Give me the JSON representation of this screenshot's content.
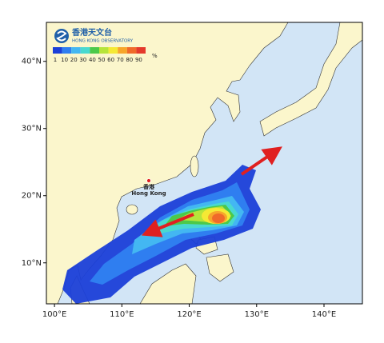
{
  "logo": {
    "name_zh": "香港天文台",
    "name_en": "HONG KONG OBSERVATORY"
  },
  "colorbar": {
    "levels": [
      1,
      10,
      20,
      30,
      40,
      50,
      60,
      70,
      80,
      90
    ],
    "unit": "%",
    "colors": [
      "#1b3fd8",
      "#2f7ef0",
      "#43b7f2",
      "#49d9d0",
      "#4cc94a",
      "#b6e43a",
      "#f5e934",
      "#f7a62b",
      "#f06a2a",
      "#e43a2c"
    ]
  },
  "map": {
    "lonlim": [
      98.8,
      145.7
    ],
    "latlim": [
      3.9,
      45.8
    ],
    "lat_ticks": [
      {
        "value": 10,
        "label": "10°N"
      },
      {
        "value": 20,
        "label": "20°N"
      },
      {
        "value": 30,
        "label": "30°N"
      },
      {
        "value": 40,
        "label": "40°N"
      }
    ],
    "lon_ticks": [
      {
        "value": 100,
        "label": "100°E"
      },
      {
        "value": 110,
        "label": "110°E"
      },
      {
        "value": 120,
        "label": "120°E"
      },
      {
        "value": 130,
        "label": "130°E"
      },
      {
        "value": 140,
        "label": "140°E"
      }
    ],
    "hong_kong": {
      "label_zh": "香港",
      "label_en": "Hong Kong"
    }
  }
}
